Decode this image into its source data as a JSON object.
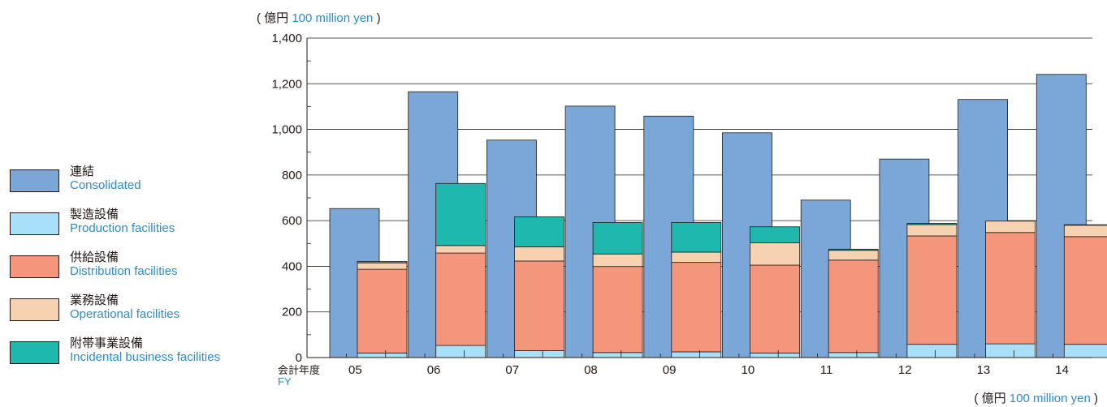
{
  "chart_data": {
    "type": "bar",
    "categories": [
      "05",
      "06",
      "07",
      "08",
      "09",
      "10",
      "11",
      "12",
      "13",
      "14"
    ],
    "ylim": [
      0,
      1400
    ],
    "yticks": [
      "0",
      "200",
      "400",
      "600",
      "800",
      "1,000",
      "1,200",
      "1,400"
    ],
    "unit_top": {
      "jp": "( 億円 ",
      "en": "100 million yen",
      "close": " )"
    },
    "unit_bottom": {
      "jp": "( 億円 ",
      "en": "100 million yen",
      "close": " )"
    },
    "xlabel": {
      "jp": "会計年度",
      "en": "FY"
    },
    "consolidated": {
      "name_jp": "連結",
      "name_en": "Consolidated",
      "color": "#7aa7d8",
      "values": [
        653,
        1165,
        953,
        1102,
        1058,
        985,
        690,
        870,
        1131,
        1241
      ]
    },
    "stacked_series": [
      {
        "name_jp": "製造設備",
        "name_en": "Production facilities",
        "color": "#a8e0f9",
        "values": [
          20,
          53,
          30,
          22,
          25,
          20,
          22,
          58,
          60,
          58
        ]
      },
      {
        "name_jp": "供給設備",
        "name_en": "Distribution facilities",
        "color": "#f4967c",
        "values": [
          367,
          405,
          393,
          377,
          392,
          385,
          405,
          475,
          488,
          472
        ]
      },
      {
        "name_jp": "業務設備",
        "name_en": "Operational facilities",
        "color": "#f7d2b0",
        "values": [
          28,
          33,
          62,
          55,
          45,
          98,
          43,
          50,
          50,
          50
        ]
      },
      {
        "name_jp": "附帯事業設備",
        "name_en": "Incidental business facilities",
        "color": "#1eb8ae",
        "values": [
          6,
          272,
          132,
          138,
          130,
          70,
          5,
          5,
          0,
          2
        ]
      }
    ]
  }
}
